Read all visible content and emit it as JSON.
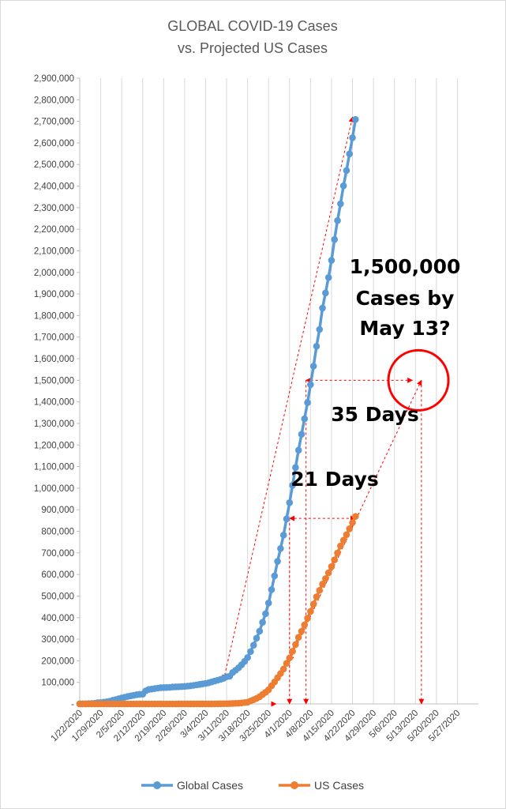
{
  "chart_data": {
    "type": "line",
    "title": [
      "GLOBAL COVID-19 Cases",
      "vs. Projected US Cases"
    ],
    "xlabel": "",
    "ylabel": "",
    "ylim": [
      0,
      2900000
    ],
    "y_ticks": [
      "-",
      "100,000",
      "200,000",
      "300,000",
      "400,000",
      "500,000",
      "600,000",
      "700,000",
      "800,000",
      "900,000",
      "1,000,000",
      "1,100,000",
      "1,200,000",
      "1,300,000",
      "1,400,000",
      "1,500,000",
      "1,600,000",
      "1,700,000",
      "1,800,000",
      "1,900,000",
      "2,000,000",
      "2,100,000",
      "2,200,000",
      "2,300,000",
      "2,400,000",
      "2,500,000",
      "2,600,000",
      "2,700,000",
      "2,800,000",
      "2,900,000"
    ],
    "x_start": "2020-01-22",
    "x_ticks": [
      "1/22/2020",
      "1/29/2020",
      "2/5/2020",
      "2/12/2020",
      "2/19/2020",
      "2/26/2020",
      "3/4/2020",
      "3/11/2020",
      "3/18/2020",
      "3/25/2020",
      "4/1/2020",
      "4/8/2020",
      "4/15/2020",
      "4/22/2020",
      "4/29/2020",
      "5/6/2020",
      "5/13/2020",
      "5/20/2020",
      "5/27/2020"
    ],
    "grid": "vertical",
    "legend": "bottom",
    "series": [
      {
        "name": "Global Cases",
        "color": "#5B9BD5",
        "values": [
          555,
          654,
          941,
          1434,
          2118,
          2927,
          5578,
          6166,
          8234,
          9927,
          12038,
          16787,
          19881,
          23892,
          27635,
          30794,
          34391,
          37120,
          40150,
          42762,
          44802,
          45221,
          60368,
          66885,
          69030,
          71224,
          73258,
          75136,
          75639,
          76197,
          76819,
          78572,
          78958,
          79561,
          80406,
          81388,
          82746,
          84112,
          86011,
          88369,
          90306,
          92840,
          95120,
          97886,
          101801,
          105847,
          109821,
          113590,
          118620,
          125875,
          128352,
          145205,
          156101,
          167454,
          181574,
          197102,
          214821,
          242570,
          272208,
          304507,
          336953,
          378235,
          418045,
          467653,
          529591,
          593291,
          660706,
          720117,
          782365,
          857487,
          932605,
          1013157,
          1095917,
          1176060,
          1249754,
          1321481,
          1396476,
          1479804,
          1565278,
          1657526,
          1735650,
          1834721,
          1904838,
          1976191,
          2056054,
          2152437,
          2240190,
          2317759,
          2401378,
          2472259,
          2549294,
          2624368,
          2708885
        ],
        "marker": "circle"
      },
      {
        "name": "US Cases",
        "color": "#ED7D31",
        "values": [
          1,
          1,
          2,
          2,
          5,
          5,
          5,
          5,
          5,
          7,
          8,
          8,
          11,
          11,
          11,
          11,
          11,
          11,
          11,
          11,
          12,
          12,
          13,
          13,
          13,
          13,
          13,
          13,
          13,
          13,
          15,
          15,
          15,
          51,
          51,
          57,
          58,
          60,
          68,
          74,
          98,
          118,
          149,
          217,
          262,
          402,
          518,
          583,
          959,
          1281,
          1663,
          2179,
          2727,
          3499,
          4632,
          6421,
          7783,
          13747,
          19273,
          25600,
          33276,
          43843,
          53740,
          65778,
          83836,
          101657,
          121465,
          140909,
          161831,
          188172,
          213242,
          243622,
          275367,
          308650,
          336802,
          366317,
          397121,
          428654,
          462780,
          496535,
          526396,
          555313,
          580619,
          607670,
          636350,
          667592,
          699706,
          732197,
          758809,
          784326,
          811865,
          840351,
          869170
        ],
        "marker": "circle"
      }
    ],
    "annotations": [
      {
        "text_lines": [
          "1,500,000",
          "Cases by",
          "May 13?"
        ]
      },
      {
        "text": "35 Days"
      },
      {
        "text": "21 Days"
      }
    ],
    "annotation_color": "#FF0000"
  }
}
